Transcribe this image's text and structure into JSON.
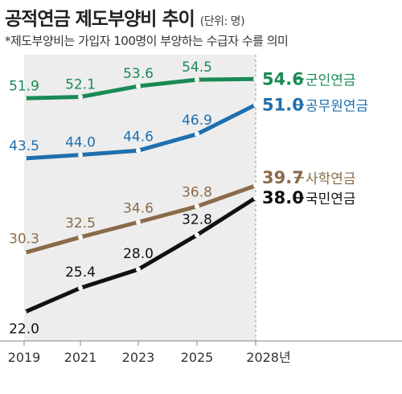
{
  "title": "공적연금 제도부양비 추이",
  "unit_label": "(단위: 명)",
  "subtitle": "*제도부양비는 가입자 100명이 부양하는 수급자 수를 의미",
  "chart_data": {
    "type": "line",
    "x": [
      "2019",
      "2021",
      "2023",
      "2025",
      "2028년"
    ],
    "ylim": [
      18,
      58
    ],
    "grid": false,
    "shaded_region": [
      "2019",
      "2028년"
    ],
    "series": [
      {
        "name": "군인연금",
        "values": [
          51.9,
          52.1,
          53.6,
          54.5,
          54.6
        ],
        "labels": [
          "51.9",
          "52.1",
          "53.6",
          "54.5",
          "54.6"
        ],
        "color": "#1a8a55"
      },
      {
        "name": "공무원연금",
        "values": [
          43.5,
          44.0,
          44.6,
          46.9,
          51.0
        ],
        "labels": [
          "43.5",
          "44.0",
          "44.6",
          "46.9",
          "51.0"
        ],
        "color": "#1f6fae"
      },
      {
        "name": "사학연금",
        "values": [
          30.3,
          32.5,
          34.6,
          36.8,
          39.7
        ],
        "labels": [
          "30.3",
          "32.5",
          "34.6",
          "36.8",
          "39.7"
        ],
        "color": "#8a6a48"
      },
      {
        "name": "국민연금",
        "values": [
          22.0,
          25.4,
          28.0,
          32.8,
          38.0
        ],
        "labels": [
          "22.0",
          "25.4",
          "28.0",
          "32.8",
          "38.0"
        ],
        "color": "#111111"
      }
    ]
  }
}
